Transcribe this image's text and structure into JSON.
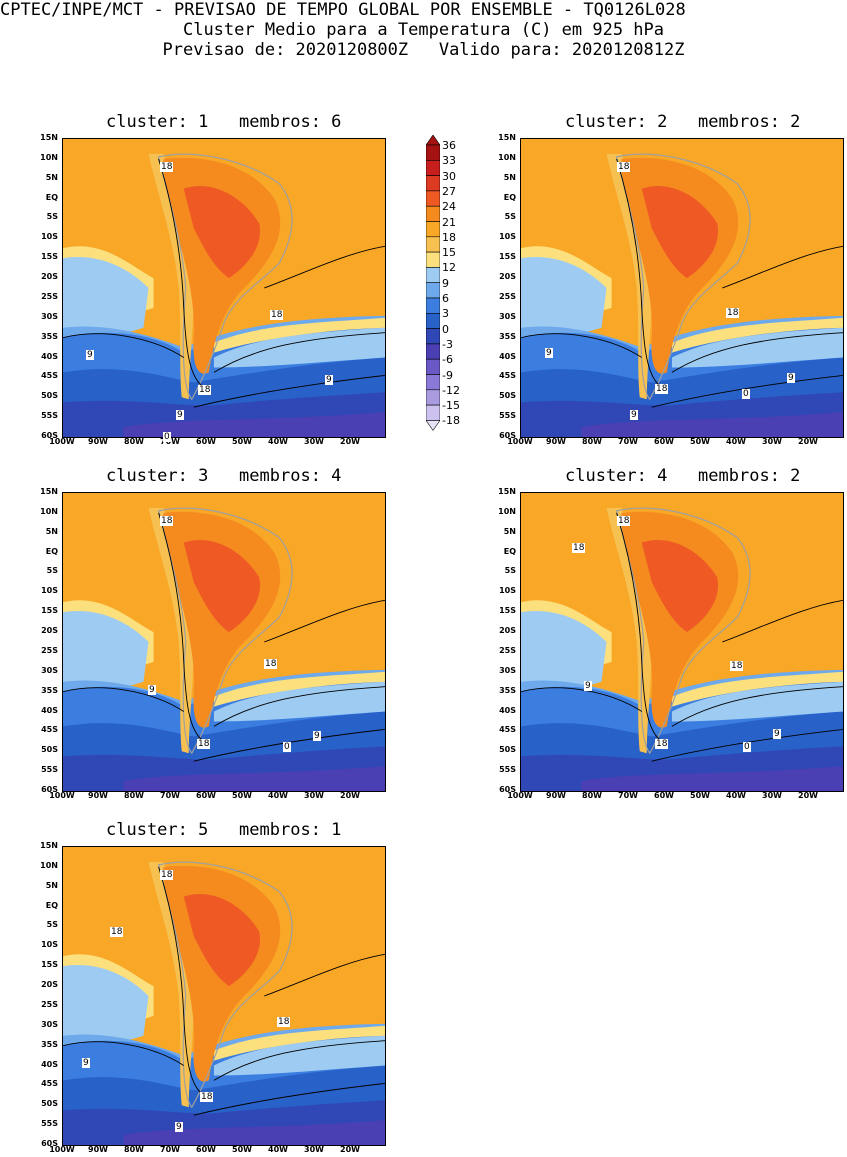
{
  "header": {
    "line1": "CPTEC/INPE/MCT - PREVISAO DE TEMPO GLOBAL POR ENSEMBLE - TQ0126L028",
    "line2": "Cluster Medio para a Temperatura (C) em 925 hPa",
    "line3": "Previsao de: 2020120800Z   Valido para: 2020120812Z"
  },
  "axes": {
    "lat_labels": [
      "15N",
      "10N",
      "5N",
      "EQ",
      "5S",
      "10S",
      "15S",
      "20S",
      "25S",
      "30S",
      "35S",
      "40S",
      "45S",
      "50S",
      "55S",
      "60S"
    ],
    "lon_labels": [
      "100W",
      "90W",
      "80W",
      "70W",
      "60W",
      "50W",
      "40W",
      "30W",
      "20W"
    ]
  },
  "colorbar": {
    "labels": [
      "36",
      "33",
      "30",
      "27",
      "24",
      "21",
      "18",
      "15",
      "12",
      "9",
      "6",
      "3",
      "0",
      "-3",
      "-6",
      "-9",
      "-12",
      "-15",
      "-18"
    ],
    "colors": [
      "#a51212",
      "#c81e1e",
      "#dd3a22",
      "#ef5a24",
      "#f58b1f",
      "#f8a727",
      "#f7c152",
      "#fce07e",
      "#9ecbf2",
      "#6ea9ec",
      "#3b7ee0",
      "#2861c8",
      "#3047b6",
      "#4b3fb4",
      "#6a58c6",
      "#8a79d6",
      "#aa9be1",
      "#cdc2ef"
    ]
  },
  "panels": [
    {
      "title": "cluster: 1   membros: 6",
      "labels": {
        "a": "18",
        "b": "18",
        "c": "9",
        "d": "18",
        "e": "9",
        "f": "9",
        "g": "0"
      }
    },
    {
      "title": "cluster: 2   membros: 2",
      "labels": {
        "a": "18",
        "b": "18",
        "c": "9",
        "d": "18",
        "e": "9",
        "f": "9",
        "g": "0"
      }
    },
    {
      "title": "cluster: 3   membros: 4",
      "labels": {
        "a": "18",
        "b": "18",
        "c": "9",
        "d": "18",
        "e": "9",
        "f": "0"
      }
    },
    {
      "title": "cluster: 4   membros: 2",
      "labels": {
        "a": "18",
        "b": "18",
        "c": "18",
        "d": "9",
        "e": "18",
        "f": "9",
        "g": "0"
      }
    },
    {
      "title": "cluster: 5   membros: 1",
      "labels": {
        "a": "18",
        "b": "18",
        "c": "18",
        "d": "9",
        "e": "18",
        "f": "9"
      }
    }
  ]
}
